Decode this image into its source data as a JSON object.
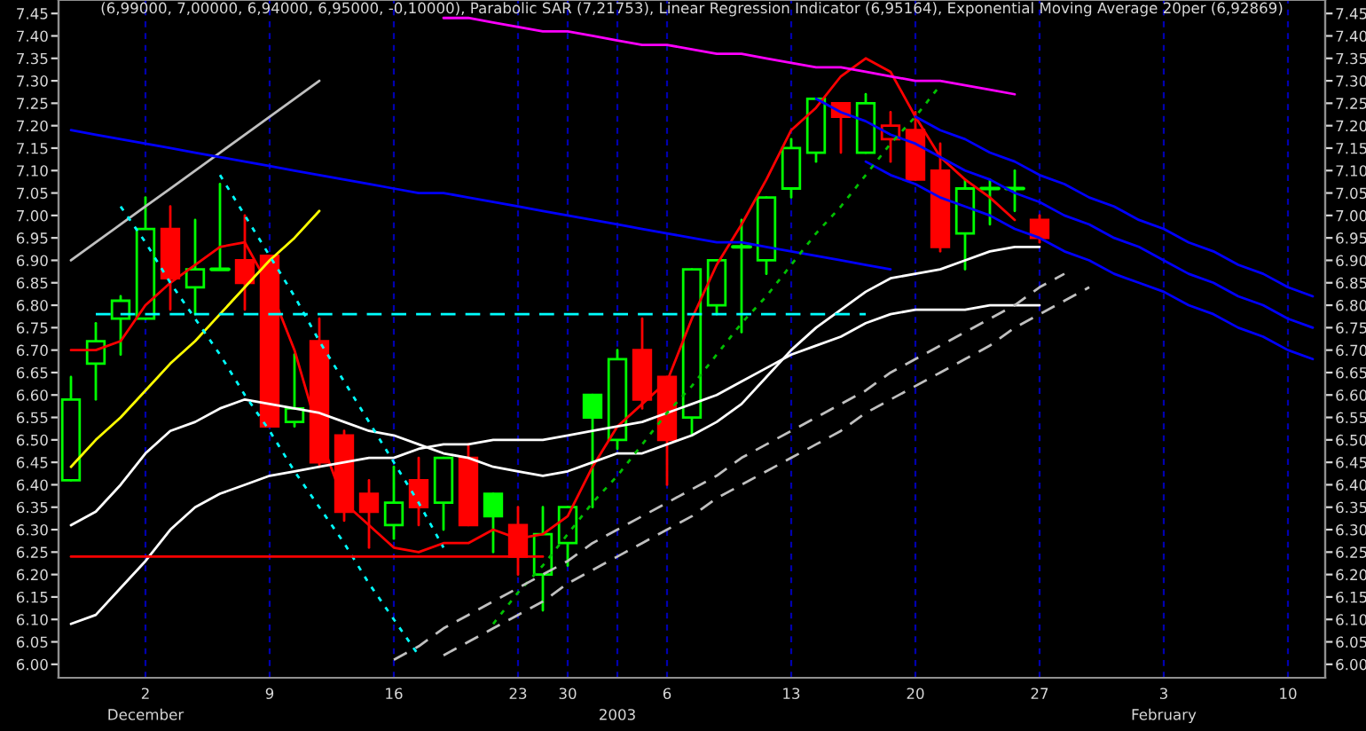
{
  "chart_data": {
    "type": "candlestick",
    "title": "(6,99000, 7,00000, 6,94000, 6,95000, -0,10000), Parabolic SAR (7,21753), Linear Regression Indicator (6,95164), Exponential Moving Average 20per (6,92869)",
    "categories": [
      null,
      null,
      null,
      "2\nDecember",
      null,
      null,
      null,
      null,
      "9",
      null,
      null,
      null,
      null,
      "16",
      null,
      null,
      null,
      null,
      "23",
      null,
      "30",
      null,
      "\n2003",
      null,
      "6",
      null,
      null,
      null,
      null,
      "13",
      null,
      null,
      null,
      null,
      "20",
      null,
      null,
      null,
      null,
      "27",
      null,
      null,
      null,
      null,
      "3\nFebruary",
      null,
      null,
      null,
      null,
      "10",
      null
    ],
    "ohlc": [
      [
        6.41,
        6.64,
        6.41,
        6.59
      ],
      [
        6.67,
        6.76,
        6.59,
        6.72
      ],
      [
        6.77,
        6.82,
        6.69,
        6.81
      ],
      [
        6.77,
        7.04,
        6.77,
        6.97
      ],
      [
        6.97,
        7.02,
        6.79,
        6.86
      ],
      [
        6.84,
        6.99,
        6.78,
        6.88
      ],
      [
        6.88,
        7.07,
        6.88,
        6.88
      ],
      [
        6.9,
        7.0,
        6.79,
        6.85
      ],
      [
        6.91,
        6.91,
        6.53,
        6.53
      ],
      [
        6.54,
        6.69,
        6.53,
        6.57
      ],
      [
        6.72,
        6.77,
        6.44,
        6.45
      ],
      [
        6.51,
        6.52,
        6.32,
        6.34
      ],
      [
        6.38,
        6.41,
        6.26,
        6.34
      ],
      [
        6.31,
        6.44,
        6.28,
        6.36
      ],
      [
        6.41,
        6.46,
        6.31,
        6.35
      ],
      [
        6.36,
        6.46,
        6.3,
        6.46
      ],
      [
        6.46,
        6.49,
        6.31,
        6.31
      ],
      [
        6.38,
        6.38,
        6.25,
        6.33
      ],
      [
        6.31,
        6.35,
        6.2,
        6.24
      ],
      [
        6.2,
        6.35,
        6.12,
        6.29
      ],
      [
        6.27,
        6.35,
        6.22,
        6.35
      ],
      [
        6.6,
        6.6,
        6.35,
        6.55
      ],
      [
        6.5,
        6.7,
        6.48,
        6.68
      ],
      [
        6.7,
        6.77,
        6.57,
        6.59
      ],
      [
        6.64,
        6.64,
        6.4,
        6.5
      ],
      [
        6.55,
        6.88,
        6.51,
        6.88
      ],
      [
        6.8,
        6.9,
        6.78,
        6.9
      ],
      [
        6.93,
        6.99,
        6.74,
        6.93
      ],
      [
        6.9,
        7.04,
        6.87,
        7.04
      ],
      [
        7.06,
        7.17,
        7.04,
        7.15
      ],
      [
        7.14,
        7.26,
        7.12,
        7.26
      ],
      [
        7.25,
        7.25,
        7.14,
        7.22
      ],
      [
        7.14,
        7.27,
        7.14,
        7.25
      ],
      [
        7.17,
        7.23,
        7.12,
        7.2
      ],
      [
        7.19,
        7.23,
        7.08,
        7.08
      ],
      [
        7.1,
        7.16,
        6.92,
        6.93
      ],
      [
        6.96,
        7.08,
        6.88,
        7.06
      ],
      [
        7.06,
        7.08,
        6.98,
        7.06
      ],
      [
        7.06,
        7.1,
        7.01,
        7.06
      ],
      [
        6.99,
        7.0,
        6.94,
        6.95
      ],
      null,
      null,
      null,
      null,
      null,
      null,
      null,
      null,
      null,
      null,
      null
    ],
    "colors": [
      "#00ff00",
      "#00ff00",
      "#00ff00",
      "#00ff00",
      "#ff0000",
      "#00ff00",
      "#00ff00",
      "#ff0000",
      "#ff0000",
      "#00ff00",
      "#ff0000",
      "#ff0000",
      "#ff0000",
      "#00ff00",
      "#ff0000",
      "#00ff00",
      "#ff0000",
      "#00ff00",
      "#ff0000",
      "#00ff00",
      "#00ff00",
      "#00ff00",
      "#00ff00",
      "#ff0000",
      "#ff0000",
      "#00ff00",
      "#00ff00",
      "#00ff00",
      "#00ff00",
      "#00ff00",
      "#00ff00",
      "#ff0000",
      "#00ff00",
      "#ff0000",
      "#ff0000",
      "#ff0000",
      "#00ff00",
      "#00ff00",
      "#00ff00",
      "#ff0000",
      null,
      null,
      null,
      null,
      null,
      null,
      null,
      null,
      null,
      null,
      null
    ],
    "series": [
      {
        "type": "line",
        "color": "#ff0000",
        "line_style": "solid",
        "values": [
          6.7,
          6.7,
          6.72,
          6.8,
          6.85,
          6.89,
          6.93,
          6.94,
          6.84,
          6.7,
          6.51,
          6.36,
          6.31,
          6.26,
          6.25,
          6.27,
          6.27,
          6.3,
          6.28,
          6.29,
          6.33,
          6.44,
          6.53,
          6.58,
          6.63,
          6.77,
          6.89,
          6.98,
          7.08,
          7.19,
          7.24,
          7.31,
          7.35,
          7.32,
          7.22,
          7.13,
          7.08,
          7.04,
          6.99,
          null,
          null,
          null,
          null,
          null,
          null,
          null,
          null,
          null,
          null,
          null,
          null
        ]
      },
      {
        "type": "line",
        "color": "#ffffff",
        "line_style": "solid",
        "values": [
          6.31,
          6.34,
          6.4,
          6.47,
          6.52,
          6.54,
          6.57,
          6.59,
          6.58,
          6.57,
          6.56,
          6.54,
          6.52,
          6.51,
          6.49,
          6.47,
          6.46,
          6.44,
          6.43,
          6.42,
          6.43,
          6.45,
          6.47,
          6.47,
          6.49,
          6.51,
          6.54,
          6.58,
          6.64,
          6.7,
          6.75,
          6.79,
          6.83,
          6.86,
          6.87,
          6.88,
          6.9,
          6.92,
          6.93,
          6.93,
          null,
          null,
          null,
          null,
          null,
          null,
          null,
          null,
          null,
          null,
          null
        ]
      },
      {
        "type": "line",
        "color": "#ffffff",
        "line_style": "solid",
        "values": [
          6.09,
          6.11,
          6.17,
          6.23,
          6.3,
          6.35,
          6.38,
          6.4,
          6.42,
          6.43,
          6.44,
          6.45,
          6.46,
          6.46,
          6.48,
          6.49,
          6.49,
          6.5,
          6.5,
          6.5,
          6.51,
          6.52,
          6.53,
          6.54,
          6.56,
          6.58,
          6.6,
          6.63,
          6.66,
          6.69,
          6.71,
          6.73,
          6.76,
          6.78,
          6.79,
          6.79,
          6.79,
          6.8,
          6.8,
          6.8,
          null,
          null,
          null,
          null,
          null,
          null,
          null,
          null,
          null,
          null,
          null
        ]
      },
      {
        "type": "line",
        "color": "#ff00ff",
        "line_style": "solid",
        "values": [
          null,
          null,
          null,
          null,
          null,
          null,
          null,
          null,
          null,
          null,
          null,
          null,
          null,
          null,
          null,
          7.44,
          7.44,
          7.43,
          7.42,
          7.41,
          7.41,
          7.4,
          7.39,
          7.38,
          7.38,
          7.37,
          7.36,
          7.36,
          7.35,
          7.34,
          7.33,
          7.33,
          7.32,
          7.31,
          7.3,
          7.3,
          7.29,
          7.28,
          7.27,
          null,
          null,
          null,
          null,
          null,
          null,
          null,
          null,
          null,
          null,
          null,
          null
        ]
      },
      {
        "type": "line",
        "color": "#c0c0c0",
        "line_style": "solid",
        "values": [
          6.9,
          6.94,
          6.98,
          7.02,
          7.06,
          7.1,
          7.14,
          7.18,
          7.22,
          7.26,
          7.3,
          null,
          null,
          null,
          null,
          null,
          null,
          null,
          null,
          null,
          null,
          null,
          null,
          null,
          null,
          null,
          null,
          null,
          null,
          null,
          null,
          null,
          null,
          null,
          null,
          null,
          null,
          null,
          null,
          null,
          null,
          null,
          null,
          null,
          null,
          null,
          null,
          null,
          null,
          null,
          null
        ]
      },
      {
        "type": "line",
        "color": "#ffff00",
        "line_style": "solid",
        "values": [
          6.44,
          6.5,
          6.55,
          6.61,
          6.67,
          6.72,
          6.78,
          6.84,
          6.9,
          6.95,
          7.01,
          null,
          null,
          null,
          null,
          null,
          null,
          null,
          null,
          null,
          null,
          null,
          null,
          null,
          null,
          null,
          null,
          null,
          null,
          null,
          null,
          null,
          null,
          null,
          null,
          null,
          null,
          null,
          null,
          null,
          null,
          null,
          null,
          null,
          null,
          null,
          null,
          null,
          null,
          null,
          null
        ]
      },
      {
        "type": "line",
        "color": "#00ffff",
        "line_style": "dotted",
        "values": [
          null,
          null,
          7.02,
          6.94,
          6.85,
          6.77,
          6.69,
          6.6,
          6.52,
          6.43,
          6.35,
          6.27,
          6.18,
          6.1,
          6.02,
          null,
          null,
          null,
          null,
          null,
          null,
          null,
          null,
          null,
          null,
          null,
          null,
          null,
          null,
          null,
          null,
          null,
          null,
          null,
          null,
          null,
          null,
          null,
          null,
          null,
          null,
          null,
          null,
          null,
          null,
          null,
          null,
          null,
          null,
          null,
          null
        ]
      },
      {
        "type": "line",
        "color": "#00ffff",
        "line_style": "dotted",
        "values": [
          null,
          null,
          null,
          null,
          null,
          null,
          7.09,
          7.0,
          6.91,
          6.82,
          6.72,
          6.63,
          6.54,
          6.45,
          6.36,
          6.26,
          null,
          null,
          null,
          null,
          null,
          null,
          null,
          null,
          null,
          null,
          null,
          null,
          null,
          null,
          null,
          null,
          null,
          null,
          null,
          null,
          null,
          null,
          null,
          null,
          null,
          null,
          null,
          null,
          null,
          null,
          null,
          null,
          null,
          null,
          null
        ]
      },
      {
        "type": "line",
        "color": "#00ffff",
        "line_style": "dashed",
        "values": [
          null,
          6.78,
          6.78,
          6.78,
          6.78,
          6.78,
          6.78,
          6.78,
          6.78,
          6.78,
          6.78,
          6.78,
          6.78,
          6.78,
          6.78,
          6.78,
          6.78,
          6.78,
          6.78,
          6.78,
          6.78,
          6.78,
          6.78,
          6.78,
          6.78,
          6.78,
          6.78,
          6.78,
          6.78,
          6.78,
          6.78,
          6.78,
          6.78,
          null,
          null,
          null,
          null,
          null,
          null,
          null,
          null,
          null,
          null,
          null,
          null,
          null,
          null,
          null,
          null,
          null,
          null
        ]
      },
      {
        "type": "line",
        "color": "#ff0000",
        "line_style": "solid",
        "values": [
          6.24,
          6.24,
          6.24,
          6.24,
          6.24,
          6.24,
          6.24,
          6.24,
          6.24,
          6.24,
          6.24,
          6.24,
          6.24,
          6.24,
          6.24,
          6.24,
          6.24,
          6.24,
          6.24,
          6.24,
          null,
          null,
          null,
          null,
          null,
          null,
          null,
          null,
          null,
          null,
          null,
          null,
          null,
          null,
          null,
          null,
          null,
          null,
          null,
          null,
          null,
          null,
          null,
          null,
          null,
          null,
          null,
          null,
          null,
          null,
          null
        ]
      },
      {
        "type": "line",
        "color": "#0000ff",
        "line_style": "solid",
        "values": [
          7.19,
          7.18,
          7.17,
          7.16,
          7.15,
          7.14,
          7.13,
          7.12,
          7.11,
          7.1,
          7.09,
          7.08,
          7.07,
          7.06,
          7.05,
          7.05,
          7.04,
          7.03,
          7.02,
          7.01,
          7.0,
          6.99,
          6.98,
          6.97,
          6.96,
          6.95,
          6.94,
          6.94,
          6.93,
          6.92,
          6.91,
          6.9,
          6.89,
          6.88,
          null,
          null,
          null,
          null,
          null,
          null,
          null,
          null,
          null,
          null,
          null,
          null,
          null,
          null,
          null,
          null,
          null
        ]
      },
      {
        "type": "line",
        "color": "#0000ff",
        "line_style": "solid",
        "values": [
          null,
          null,
          null,
          null,
          null,
          null,
          null,
          null,
          null,
          null,
          null,
          null,
          null,
          null,
          null,
          null,
          null,
          null,
          null,
          null,
          null,
          null,
          null,
          null,
          null,
          null,
          null,
          null,
          null,
          null,
          null,
          null,
          null,
          null,
          7.22,
          7.19,
          7.17,
          7.14,
          7.12,
          7.09,
          7.07,
          7.04,
          7.02,
          6.99,
          6.97,
          6.94,
          6.92,
          6.89,
          6.87,
          6.84,
          6.82
        ]
      },
      {
        "type": "line",
        "color": "#0000ff",
        "line_style": "solid",
        "values": [
          null,
          null,
          null,
          null,
          null,
          null,
          null,
          null,
          null,
          null,
          null,
          null,
          null,
          null,
          null,
          null,
          null,
          null,
          null,
          null,
          null,
          null,
          null,
          null,
          null,
          null,
          null,
          null,
          null,
          null,
          7.26,
          7.23,
          7.21,
          7.18,
          7.16,
          7.13,
          7.1,
          7.08,
          7.05,
          7.03,
          7.0,
          6.98,
          6.95,
          6.93,
          6.9,
          6.87,
          6.85,
          6.82,
          6.8,
          6.77,
          6.75
        ]
      },
      {
        "type": "line",
        "color": "#0000ff",
        "line_style": "solid",
        "values": [
          null,
          null,
          null,
          null,
          null,
          null,
          null,
          null,
          null,
          null,
          null,
          null,
          null,
          null,
          null,
          null,
          null,
          null,
          null,
          null,
          null,
          null,
          null,
          null,
          null,
          null,
          null,
          null,
          null,
          null,
          null,
          null,
          7.12,
          7.09,
          7.07,
          7.04,
          7.02,
          7.0,
          6.97,
          6.95,
          6.92,
          6.9,
          6.87,
          6.85,
          6.83,
          6.8,
          6.78,
          6.75,
          6.73,
          6.7,
          6.68
        ]
      },
      {
        "type": "line",
        "color": "#00c000",
        "line_style": "dotted",
        "values": [
          null,
          null,
          null,
          null,
          null,
          null,
          null,
          null,
          null,
          null,
          null,
          null,
          null,
          null,
          null,
          null,
          null,
          6.09,
          6.16,
          6.22,
          6.29,
          6.36,
          6.42,
          6.49,
          6.56,
          6.62,
          6.69,
          6.76,
          6.82,
          6.89,
          6.96,
          7.02,
          7.09,
          7.16,
          7.22,
          7.29,
          null,
          null,
          null,
          null,
          null,
          null,
          null,
          null,
          null,
          null,
          null,
          null,
          null,
          null,
          null
        ]
      },
      {
        "type": "line",
        "color": "#c0c0c0",
        "line_style": "dashed",
        "values": [
          null,
          null,
          null,
          null,
          null,
          null,
          null,
          null,
          null,
          null,
          null,
          null,
          null,
          6.01,
          6.04,
          6.08,
          6.11,
          6.14,
          6.17,
          6.2,
          6.23,
          6.27,
          6.3,
          6.33,
          6.36,
          6.39,
          6.42,
          6.46,
          6.49,
          6.52,
          6.55,
          6.58,
          6.61,
          6.65,
          6.68,
          6.71,
          6.74,
          6.77,
          6.8,
          6.84,
          6.87,
          null,
          null,
          null,
          null,
          null,
          null,
          null,
          null,
          null,
          null
        ]
      },
      {
        "type": "line",
        "color": "#c0c0c0",
        "line_style": "dashed",
        "values": [
          null,
          null,
          null,
          null,
          null,
          null,
          null,
          null,
          null,
          null,
          null,
          null,
          null,
          null,
          null,
          6.02,
          6.05,
          6.08,
          6.11,
          6.14,
          6.18,
          6.21,
          6.24,
          6.27,
          6.3,
          6.33,
          6.37,
          6.4,
          6.43,
          6.46,
          6.49,
          6.52,
          6.56,
          6.59,
          6.62,
          6.65,
          6.68,
          6.71,
          6.75,
          6.78,
          6.81,
          6.84,
          null,
          null,
          null,
          null,
          null,
          null,
          null,
          null,
          null
        ]
      }
    ],
    "ylim": [
      5.97,
      7.48
    ],
    "yticks": [
      {
        "value": 6.0,
        "label": "6.00"
      },
      {
        "value": 6.05,
        "label": "6.05"
      },
      {
        "value": 6.1,
        "label": "6.10"
      },
      {
        "value": 6.15,
        "label": "6.15"
      },
      {
        "value": 6.2,
        "label": "6.20"
      },
      {
        "value": 6.25,
        "label": "6.25"
      },
      {
        "value": 6.3,
        "label": "6.30"
      },
      {
        "value": 6.35,
        "label": "6.35"
      },
      {
        "value": 6.4,
        "label": "6.40"
      },
      {
        "value": 6.45,
        "label": "6.45"
      },
      {
        "value": 6.5,
        "label": "6.50"
      },
      {
        "value": 6.55,
        "label": "6.55"
      },
      {
        "value": 6.6,
        "label": "6.60"
      },
      {
        "value": 6.65,
        "label": "6.65"
      },
      {
        "value": 6.7,
        "label": "6.70"
      },
      {
        "value": 6.75,
        "label": "6.75"
      },
      {
        "value": 6.8,
        "label": "6.80"
      },
      {
        "value": 6.85,
        "label": "6.85"
      },
      {
        "value": 6.9,
        "label": "6.90"
      },
      {
        "value": 6.95,
        "label": "6.95"
      },
      {
        "value": 7.0,
        "label": "7.00"
      },
      {
        "value": 7.05,
        "label": "7.05"
      },
      {
        "value": 7.1,
        "label": "7.10"
      },
      {
        "value": 7.15,
        "label": "7.15"
      },
      {
        "value": 7.2,
        "label": "7.20"
      },
      {
        "value": 7.25,
        "label": "7.25"
      },
      {
        "value": 7.3,
        "label": "7.30"
      },
      {
        "value": 7.35,
        "label": "7.35"
      },
      {
        "value": 7.4,
        "label": "7.40"
      },
      {
        "value": 7.45,
        "label": "7.45"
      }
    ],
    "y2lim": [
      5.97,
      7.48
    ],
    "y2ticks": [
      {
        "value": 6.0,
        "label": "6.00"
      },
      {
        "value": 6.05,
        "label": "6.05"
      },
      {
        "value": 6.1,
        "label": "6.10"
      },
      {
        "value": 6.15,
        "label": "6.15"
      },
      {
        "value": 6.2,
        "label": "6.20"
      },
      {
        "value": 6.25,
        "label": "6.25"
      },
      {
        "value": 6.3,
        "label": "6.30"
      },
      {
        "value": 6.35,
        "label": "6.35"
      },
      {
        "value": 6.4,
        "label": "6.40"
      },
      {
        "value": 6.45,
        "label": "6.45"
      },
      {
        "value": 6.5,
        "label": "6.50"
      },
      {
        "value": 6.55,
        "label": "6.55"
      },
      {
        "value": 6.6,
        "label": "6.60"
      },
      {
        "value": 6.65,
        "label": "6.65"
      },
      {
        "value": 6.7,
        "label": "6.70"
      },
      {
        "value": 6.75,
        "label": "6.75"
      },
      {
        "value": 6.8,
        "label": "6.80"
      },
      {
        "value": 6.85,
        "label": "6.85"
      },
      {
        "value": 6.9,
        "label": "6.90"
      },
      {
        "value": 6.95,
        "label": "6.95"
      },
      {
        "value": 7.0,
        "label": "7.00"
      },
      {
        "value": 7.05,
        "label": "7.05"
      },
      {
        "value": 7.1,
        "label": "7.10"
      },
      {
        "value": 7.15,
        "label": "7.15"
      },
      {
        "value": 7.2,
        "label": "7.20"
      },
      {
        "value": 7.25,
        "label": "7.25"
      },
      {
        "value": 7.3,
        "label": "7.30"
      },
      {
        "value": 7.35,
        "label": "7.35"
      },
      {
        "value": 7.4,
        "label": "7.40"
      },
      {
        "value": 7.45,
        "label": "7.45"
      }
    ],
    "grid": "x"
  }
}
